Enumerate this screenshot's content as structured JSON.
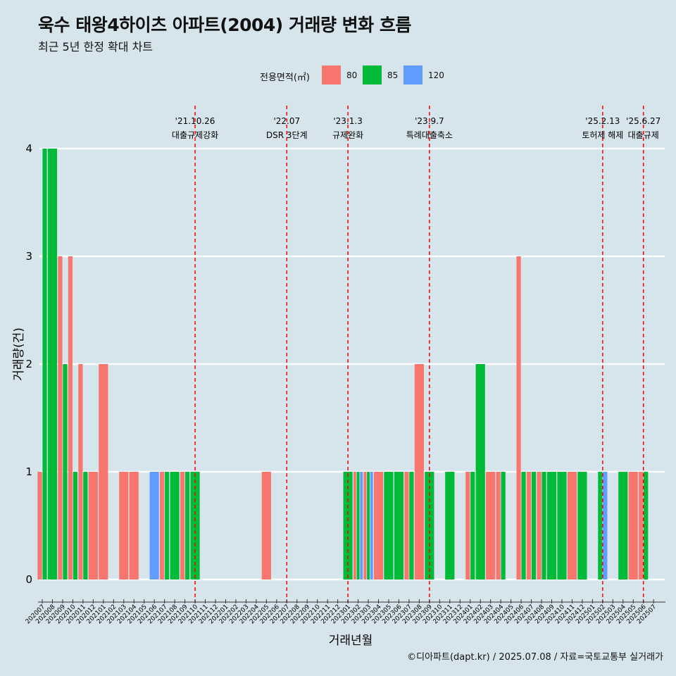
{
  "title": "욱수 태왕4하이츠 아파트(2004) 거래량 변화 흐름",
  "subtitle": "최근 5년 한정 확대 차트",
  "legend": {
    "title": "전용면적(㎡)"
  },
  "caption": "©디아파트(dapt.kr) / 2025.07.08 / 자료=국토교통부 실거래가",
  "colors": {
    "background": "#d6e4ec",
    "80": "#f8766d",
    "85": "#00ba38",
    "120": "#619cff",
    "vline": "#ff0000",
    "grid": "#ffffff"
  },
  "chart_data": {
    "type": "bar",
    "xlabel": "거래년월",
    "ylabel": "거래량(건)",
    "ylim": [
      0,
      4
    ],
    "yticks": [
      0,
      1,
      2,
      3,
      4
    ],
    "grid": true,
    "legend_position": "top",
    "series": [
      {
        "name": "80",
        "color": "#f8766d"
      },
      {
        "name": "85",
        "color": "#00ba38"
      },
      {
        "name": "120",
        "color": "#619cff"
      }
    ],
    "categories": [
      "202007",
      "202008",
      "202009",
      "202010",
      "202011",
      "202012",
      "202101",
      "202102",
      "202103",
      "202104",
      "202105",
      "202106",
      "202107",
      "202108",
      "202109",
      "202110",
      "202111",
      "202112",
      "202201",
      "202202",
      "202203",
      "202204",
      "202205",
      "202206",
      "202207",
      "202208",
      "202209",
      "202210",
      "202211",
      "202212",
      "202301",
      "202302",
      "202303",
      "202304",
      "202305",
      "202306",
      "202307",
      "202308",
      "202309",
      "202310",
      "202311",
      "202312",
      "202401",
      "202402",
      "202403",
      "202404",
      "202405",
      "202406",
      "202407",
      "202408",
      "202409",
      "202410",
      "202411",
      "202412",
      "202501",
      "202502",
      "202503",
      "202504",
      "202505",
      "202506",
      "202507"
    ],
    "bars": [
      {
        "month": "202007",
        "slots": [
          {
            "area": "80",
            "value": 1
          },
          {
            "area": "85",
            "value": 4
          }
        ]
      },
      {
        "month": "202008",
        "slots": [
          {
            "area": "85",
            "value": 4
          }
        ]
      },
      {
        "month": "202009",
        "slots": [
          {
            "area": "80",
            "value": 3
          },
          {
            "area": "85",
            "value": 2
          }
        ]
      },
      {
        "month": "202010",
        "slots": [
          {
            "area": "80",
            "value": 3
          },
          {
            "area": "85",
            "value": 1
          }
        ]
      },
      {
        "month": "202011",
        "slots": [
          {
            "area": "80",
            "value": 2
          },
          {
            "area": "85",
            "value": 1
          }
        ]
      },
      {
        "month": "202012",
        "slots": [
          {
            "area": "80",
            "value": 1
          }
        ]
      },
      {
        "month": "202101",
        "slots": [
          {
            "area": "80",
            "value": 2
          }
        ]
      },
      {
        "month": "202103",
        "slots": [
          {
            "area": "80",
            "value": 1
          }
        ]
      },
      {
        "month": "202104",
        "slots": [
          {
            "area": "80",
            "value": 1
          }
        ]
      },
      {
        "month": "202106",
        "slots": [
          {
            "area": "120",
            "value": 1
          }
        ]
      },
      {
        "month": "202107",
        "slots": [
          {
            "area": "80",
            "value": 1
          },
          {
            "area": "85",
            "value": 1
          }
        ]
      },
      {
        "month": "202108",
        "slots": [
          {
            "area": "85",
            "value": 1
          }
        ]
      },
      {
        "month": "202109",
        "slots": [
          {
            "area": "80",
            "value": 1
          },
          {
            "area": "85",
            "value": 1
          }
        ]
      },
      {
        "month": "202110",
        "slots": [
          {
            "area": "85",
            "value": 1
          }
        ]
      },
      {
        "month": "202205",
        "slots": [
          {
            "area": "80",
            "value": 1
          }
        ]
      },
      {
        "month": "202301",
        "slots": [
          {
            "area": "85",
            "value": 1
          }
        ]
      },
      {
        "month": "202302",
        "slots": [
          {
            "area": "80",
            "value": 1
          },
          {
            "area": "85",
            "value": 1
          },
          {
            "area": "120",
            "value": 1
          }
        ]
      },
      {
        "month": "202303",
        "slots": [
          {
            "area": "80",
            "value": 1
          },
          {
            "area": "85",
            "value": 1
          },
          {
            "area": "120",
            "value": 1
          }
        ]
      },
      {
        "month": "202304",
        "slots": [
          {
            "area": "80",
            "value": 1
          }
        ]
      },
      {
        "month": "202305",
        "slots": [
          {
            "area": "85",
            "value": 1
          }
        ]
      },
      {
        "month": "202306",
        "slots": [
          {
            "area": "85",
            "value": 1
          }
        ]
      },
      {
        "month": "202307",
        "slots": [
          {
            "area": "80",
            "value": 1
          },
          {
            "area": "85",
            "value": 1
          }
        ]
      },
      {
        "month": "202308",
        "slots": [
          {
            "area": "80",
            "value": 2
          }
        ]
      },
      {
        "month": "202309",
        "slots": [
          {
            "area": "85",
            "value": 1
          }
        ]
      },
      {
        "month": "202311",
        "slots": [
          {
            "area": "85",
            "value": 1
          }
        ]
      },
      {
        "month": "202401",
        "slots": [
          {
            "area": "80",
            "value": 1
          },
          {
            "area": "85",
            "value": 1
          }
        ]
      },
      {
        "month": "202402",
        "slots": [
          {
            "area": "85",
            "value": 2
          }
        ]
      },
      {
        "month": "202403",
        "slots": [
          {
            "area": "80",
            "value": 1
          }
        ]
      },
      {
        "month": "202404",
        "slots": [
          {
            "area": "80",
            "value": 1
          },
          {
            "area": "85",
            "value": 1
          }
        ]
      },
      {
        "month": "202406",
        "slots": [
          {
            "area": "80",
            "value": 3
          },
          {
            "area": "85",
            "value": 1
          }
        ]
      },
      {
        "month": "202407",
        "slots": [
          {
            "area": "80",
            "value": 1
          },
          {
            "area": "85",
            "value": 1
          }
        ]
      },
      {
        "month": "202408",
        "slots": [
          {
            "area": "80",
            "value": 1
          },
          {
            "area": "85",
            "value": 1
          }
        ]
      },
      {
        "month": "202409",
        "slots": [
          {
            "area": "85",
            "value": 1
          }
        ]
      },
      {
        "month": "202410",
        "slots": [
          {
            "area": "85",
            "value": 1
          }
        ]
      },
      {
        "month": "202411",
        "slots": [
          {
            "area": "80",
            "value": 1
          }
        ]
      },
      {
        "month": "202412",
        "slots": [
          {
            "area": "85",
            "value": 1
          }
        ]
      },
      {
        "month": "202502",
        "slots": [
          {
            "area": "85",
            "value": 1
          },
          {
            "area": "120",
            "value": 1
          }
        ]
      },
      {
        "month": "202504",
        "slots": [
          {
            "area": "85",
            "value": 1
          }
        ]
      },
      {
        "month": "202505",
        "slots": [
          {
            "area": "80",
            "value": 1
          }
        ]
      },
      {
        "month": "202506",
        "slots": [
          {
            "area": "80",
            "value": 1
          },
          {
            "area": "85",
            "value": 1
          }
        ]
      }
    ],
    "vlines": [
      {
        "month": "202110",
        "date": "'21.10.26",
        "label": "대출규제강화"
      },
      {
        "month": "202207",
        "date": "'22.07",
        "label": "DSR 3단계"
      },
      {
        "month": "202301",
        "date": "'23.1.3",
        "label": "규제완화"
      },
      {
        "month": "202309",
        "date": "'23.9.7",
        "label": "특례대출축소"
      },
      {
        "month": "202502",
        "date": "'25.2.13",
        "label": "토허제 해제"
      },
      {
        "month": "202506",
        "date": "'25.6.27",
        "label": "대출규제"
      }
    ]
  }
}
